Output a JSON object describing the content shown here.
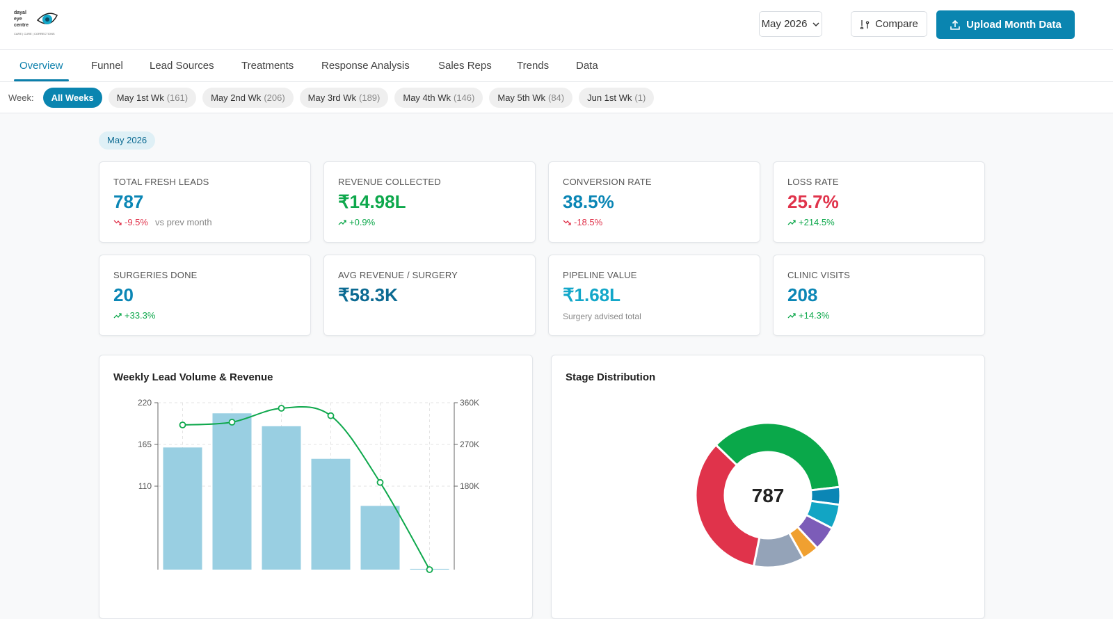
{
  "header": {
    "logo": {
      "line1": "dayal",
      "line2": "eye",
      "line3": "centre",
      "tagline": "CARE | CURE | CORRECTIONS"
    },
    "month_select": "May 2026",
    "compare": "Compare",
    "upload": "Upload Month Data"
  },
  "tabs": {
    "items": [
      "Overview",
      "Funnel",
      "Lead Sources",
      "Treatments",
      "Response Analysis",
      "Sales Reps",
      "Trends",
      "Data"
    ],
    "active": 0
  },
  "week_filter": {
    "label": "Week:",
    "active": 0,
    "chips": [
      {
        "name": "All Weeks"
      },
      {
        "name": "May 1st Wk",
        "count": "(161)"
      },
      {
        "name": "May 2nd Wk",
        "count": "(206)"
      },
      {
        "name": "May 3rd Wk",
        "count": "(189)"
      },
      {
        "name": "May 4th Wk",
        "count": "(146)"
      },
      {
        "name": "May 5th Wk",
        "count": "(84)"
      },
      {
        "name": "Jun 1st Wk",
        "count": "(1)"
      }
    ]
  },
  "period_badge": "May 2026",
  "kpis": [
    {
      "label": "TOTAL FRESH LEADS",
      "value": "787",
      "color": "#0b86b5",
      "change": "-9.5%",
      "trend": "down",
      "note": "vs prev month"
    },
    {
      "label": "REVENUE COLLECTED",
      "value": "₹14.98L",
      "color": "#0ea84c",
      "change": "+0.9%",
      "trend": "up"
    },
    {
      "label": "CONVERSION RATE",
      "value": "38.5%",
      "color": "#0b86b5",
      "change": "-18.5%",
      "trend": "down"
    },
    {
      "label": "LOSS RATE",
      "value": "25.7%",
      "color": "#e0334b",
      "change": "+214.5%",
      "trend": "up"
    },
    {
      "label": "SURGERIES DONE",
      "value": "20",
      "color": "#0b86b5",
      "change": "+33.3%",
      "trend": "up"
    },
    {
      "label": "AVG REVENUE / SURGERY",
      "value": "₹58.3K",
      "color": "#0b6a92"
    },
    {
      "label": "PIPELINE VALUE",
      "value": "₹1.68L",
      "color": "#13a7c9",
      "note": "Surgery advised total"
    },
    {
      "label": "CLINIC VISITS",
      "value": "208",
      "color": "#0b86b5",
      "change": "+14.3%",
      "trend": "up"
    }
  ],
  "chart_data": [
    {
      "type": "combo",
      "title": "Weekly Lead Volume & Revenue",
      "series": [
        {
          "type": "bar",
          "color": "#99cfe2",
          "values": [
            161,
            206,
            189,
            146,
            84,
            1
          ]
        },
        {
          "type": "line",
          "axis": "y2",
          "color": "#0ea84c",
          "values": [
            312000,
            318000,
            348000,
            332000,
            188000,
            0
          ]
        }
      ],
      "ylim": [
        0,
        220
      ],
      "yticks": [
        110,
        165,
        220
      ],
      "y2lim": [
        0,
        360000
      ],
      "y2ticks": [
        {
          "value": 180000,
          "label": "180K"
        },
        {
          "value": 270000,
          "label": "270K"
        },
        {
          "value": 360000,
          "label": "360K"
        }
      ],
      "grid": true
    },
    {
      "type": "donut",
      "title": "Stage Distribution",
      "center_label": "787",
      "values": [
        283,
        31,
        43,
        43,
        30,
        89,
        268
      ],
      "colors": [
        "#0aa84a",
        "#0b86b5",
        "#12a5c4",
        "#7c5cb8",
        "#f0a030",
        "#94a3b8",
        "#e0334b"
      ]
    }
  ]
}
